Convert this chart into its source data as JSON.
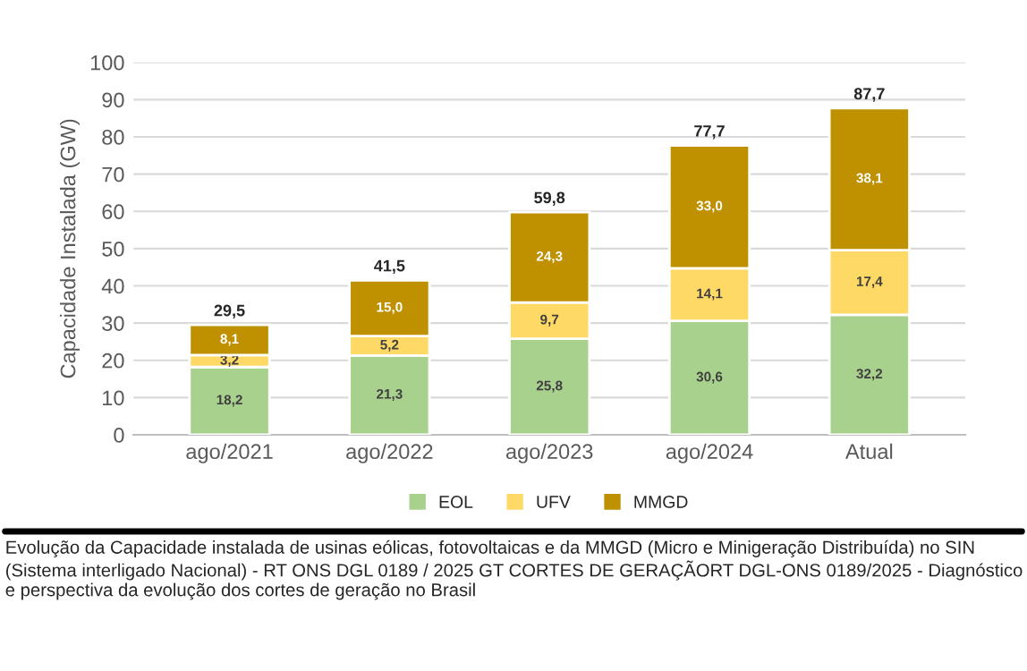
{
  "chart_data": {
    "type": "bar",
    "stacked": true,
    "ylabel": "Capacidade Instalada (GW)",
    "categories": [
      "ago/2021",
      "ago/2022",
      "ago/2023",
      "ago/2024",
      "Atual"
    ],
    "series": [
      {
        "name": "EOL",
        "color": "#a9d18e",
        "values": [
          18.2,
          21.3,
          25.8,
          30.6,
          32.2
        ],
        "value_labels": [
          "18,2",
          "21,3",
          "25,8",
          "30,6",
          "32,2"
        ]
      },
      {
        "name": "UFV",
        "color": "#ffd966",
        "values": [
          3.2,
          5.2,
          9.7,
          14.1,
          17.4
        ],
        "value_labels": [
          "3,2",
          "5,2",
          "9,7",
          "14,1",
          "17,4"
        ]
      },
      {
        "name": "MMGD",
        "color": "#bf9000",
        "values": [
          8.1,
          15.0,
          24.3,
          33.0,
          38.1
        ],
        "value_labels": [
          "8,1",
          "15,0",
          "24,3",
          "33,0",
          "38,1"
        ]
      }
    ],
    "totals": [
      "29,5",
      "41,5",
      "59,8",
      "77,7",
      "87,7"
    ],
    "ylim": [
      0,
      100
    ],
    "yticks": [
      0,
      10,
      20,
      30,
      40,
      50,
      60,
      70,
      80,
      90,
      100
    ],
    "grid": "y",
    "legend": "bottom",
    "annotations": [
      "Evolução da Capacidade instalada de usinas eólicas, fotovoltaicas e da MMGD (Micro e Minigeração Distribuída) no SIN (Sistema interligado Nacional) - RT ONS DGL 0189 / 2025 GT CORTES DE GERAÇÃORT DGL-ONS 0189/2025 - Diagnóstico e perspectiva da evolução dos cortes de geração no Brasil"
    ]
  }
}
